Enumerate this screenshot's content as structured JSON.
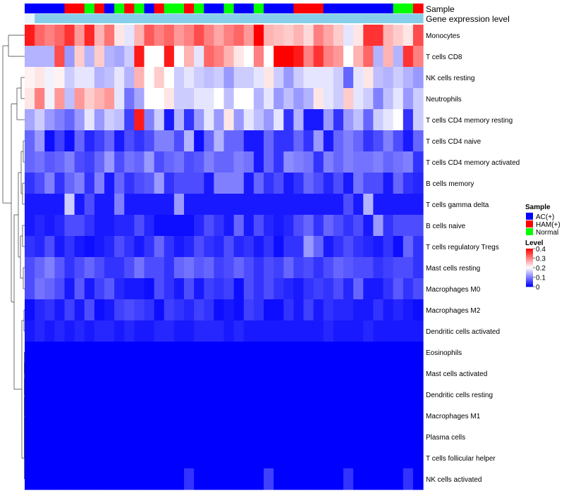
{
  "chart_data": {
    "type": "heatmap",
    "title": "",
    "color_scale": {
      "title": "Level",
      "min": 0,
      "max": 0.4,
      "ticks": [
        0.4,
        0.3,
        0.2,
        0.1,
        0
      ],
      "tick_labels": [
        "0.4",
        "0.3",
        "0.2",
        "0.1",
        "0"
      ],
      "low_color": "#0000ff",
      "mid_color": "#ffffff",
      "high_color": "#ff0000",
      "mid_value": 0.2
    },
    "annotation_tracks": [
      {
        "label": "Sample"
      },
      {
        "label": "Gene expression level",
        "color": "#87ceeb",
        "first_color": "#e8f6fb"
      }
    ],
    "sample_legend": {
      "title": "Sample",
      "items": [
        {
          "label": "AC(+)",
          "color": "#0000ff"
        },
        {
          "label": "HAM(+)",
          "color": "#ff0000"
        },
        {
          "label": "Normal",
          "color": "#00ff00"
        }
      ]
    },
    "sample_groups": [
      "AC(+)",
      "AC(+)",
      "AC(+)",
      "AC(+)",
      "HAM(+)",
      "HAM(+)",
      "Normal",
      "HAM(+)",
      "AC(+)",
      "Normal",
      "HAM(+)",
      "Normal",
      "AC(+)",
      "HAM(+)",
      "Normal",
      "Normal",
      "HAM(+)",
      "Normal",
      "AC(+)",
      "AC(+)",
      "Normal",
      "AC(+)",
      "AC(+)",
      "Normal",
      "AC(+)",
      "AC(+)",
      "AC(+)",
      "HAM(+)",
      "HAM(+)",
      "HAM(+)",
      "AC(+)",
      "AC(+)",
      "AC(+)",
      "AC(+)",
      "AC(+)",
      "AC(+)",
      "AC(+)",
      "Normal",
      "Normal",
      "HAM(+)"
    ],
    "rows": [
      {
        "label": "Monocytes",
        "values": [
          0.38,
          0.32,
          0.3,
          0.32,
          0.36,
          0.28,
          0.37,
          0.26,
          0.31,
          0.22,
          0.18,
          0.26,
          0.33,
          0.3,
          0.32,
          0.28,
          0.3,
          0.34,
          0.3,
          0.27,
          0.3,
          0.32,
          0.28,
          0.4,
          0.26,
          0.25,
          0.24,
          0.26,
          0.23,
          0.3,
          0.27,
          0.24,
          0.18,
          0.22,
          0.36,
          0.36,
          0.26,
          0.24,
          0.22,
          0.34
        ]
      },
      {
        "label": "T cells CD8",
        "values": [
          0.14,
          0.14,
          0.14,
          0.34,
          0.12,
          0.24,
          0.14,
          0.24,
          0.14,
          0.13,
          0.16,
          0.38,
          0.2,
          0.2,
          0.38,
          0.2,
          0.26,
          0.18,
          0.32,
          0.3,
          0.26,
          0.22,
          0.2,
          0.3,
          0.2,
          0.4,
          0.4,
          0.38,
          0.3,
          0.36,
          0.3,
          0.28,
          0.2,
          0.26,
          0.32,
          0.14,
          0.26,
          0.14,
          0.36,
          0.3
        ]
      },
      {
        "label": "NK cells resting",
        "values": [
          0.21,
          0.22,
          0.19,
          0.21,
          0.16,
          0.18,
          0.18,
          0.14,
          0.15,
          0.18,
          0.14,
          0.26,
          0.2,
          0.24,
          0.2,
          0.16,
          0.18,
          0.16,
          0.15,
          0.16,
          0.12,
          0.16,
          0.16,
          0.18,
          0.22,
          0.16,
          0.12,
          0.16,
          0.18,
          0.18,
          0.18,
          0.16,
          0.08,
          0.18,
          0.22,
          0.15,
          0.14,
          0.16,
          0.14,
          0.12
        ]
      },
      {
        "label": "Neutrophils",
        "values": [
          0.22,
          0.3,
          0.19,
          0.28,
          0.15,
          0.28,
          0.24,
          0.26,
          0.28,
          0.18,
          0.09,
          0.13,
          0.2,
          0.2,
          0.22,
          0.16,
          0.16,
          0.18,
          0.18,
          0.2,
          0.15,
          0.2,
          0.2,
          0.14,
          0.18,
          0.12,
          0.15,
          0.12,
          0.14,
          0.22,
          0.18,
          0.16,
          0.24,
          0.18,
          0.16,
          0.1,
          0.15,
          0.18,
          0.12,
          0.16
        ]
      },
      {
        "label": "T cells CD4 memory resting",
        "values": [
          0.13,
          0.16,
          0.12,
          0.1,
          0.08,
          0.12,
          0.18,
          0.12,
          0.16,
          0.15,
          0.05,
          0.38,
          0.1,
          0.16,
          0.02,
          0.14,
          0.04,
          0.12,
          0.18,
          0.12,
          0.22,
          0.12,
          0.18,
          0.15,
          0.12,
          0.18,
          0.04,
          0.14,
          0.02,
          0.02,
          0.12,
          0.04,
          0.12,
          0.15,
          0.08,
          0.16,
          0.18,
          0.2,
          0.04,
          0.16
        ]
      },
      {
        "label": "T cells CD4 naive",
        "values": [
          0.08,
          0.12,
          0.01,
          0.05,
          0.01,
          0.08,
          0.03,
          0.05,
          0.08,
          0.02,
          0.06,
          0.04,
          0.06,
          0.1,
          0.1,
          0.06,
          0.14,
          0.01,
          0.08,
          0.14,
          0.08,
          0.08,
          0.02,
          0.02,
          0.08,
          0.04,
          0.04,
          0.08,
          0.04,
          0.12,
          0.02,
          0.08,
          0.1,
          0.08,
          0.04,
          0.06,
          0.1,
          0.06,
          0.02,
          0.08
        ]
      },
      {
        "label": "T cells CD4 memory activated",
        "values": [
          0.08,
          0.09,
          0.07,
          0.08,
          0.1,
          0.06,
          0.05,
          0.08,
          0.12,
          0.06,
          0.09,
          0.08,
          0.12,
          0.06,
          0.08,
          0.09,
          0.06,
          0.07,
          0.1,
          0.08,
          0.08,
          0.1,
          0.09,
          0.02,
          0.08,
          0.04,
          0.11,
          0.1,
          0.09,
          0.04,
          0.1,
          0.08,
          0.1,
          0.09,
          0.09,
          0.1,
          0.08,
          0.09,
          0.1,
          0.04
        ]
      },
      {
        "label": "B cells memory",
        "values": [
          0.04,
          0.06,
          0.1,
          0.04,
          0.08,
          0.1,
          0.04,
          0.1,
          0.02,
          0.08,
          0.04,
          0.06,
          0.07,
          0.12,
          0.04,
          0.06,
          0.06,
          0.06,
          0.02,
          0.1,
          0.1,
          0.1,
          0.02,
          0.08,
          0.04,
          0.06,
          0.02,
          0.04,
          0.08,
          0.06,
          0.03,
          0.06,
          0.02,
          0.09,
          0.06,
          0.06,
          0.02,
          0.08,
          0.04,
          0.03
        ]
      },
      {
        "label": "T cells gamma delta",
        "values": [
          0.02,
          0.02,
          0.02,
          0.02,
          0.16,
          0.02,
          0.06,
          0.02,
          0.02,
          0.1,
          0.02,
          0.02,
          0.02,
          0.02,
          0.02,
          0.12,
          0.02,
          0.02,
          0.02,
          0.02,
          0.02,
          0.02,
          0.02,
          0.02,
          0.02,
          0.02,
          0.02,
          0.02,
          0.02,
          0.02,
          0.02,
          0.02,
          0.06,
          0.02,
          0.14,
          0.02,
          0.02,
          0.02,
          0.02,
          0.02
        ]
      },
      {
        "label": "B cells naive",
        "values": [
          0.02,
          0.03,
          0.02,
          0.03,
          0.06,
          0.06,
          0.04,
          0.02,
          0.02,
          0.03,
          0.03,
          0.06,
          0.03,
          0.01,
          0.01,
          0.01,
          0.01,
          0.03,
          0.06,
          0.04,
          0.02,
          0.08,
          0.02,
          0.06,
          0.03,
          0.02,
          0.03,
          0.06,
          0.08,
          0.04,
          0.08,
          0.06,
          0.04,
          0.06,
          0.02,
          0.12,
          0.04,
          0.06,
          0.06,
          0.06
        ]
      },
      {
        "label": "T cells regulatory  Tregs",
        "values": [
          0.04,
          0.03,
          0.06,
          0.02,
          0.04,
          0.02,
          0.01,
          0.02,
          0.03,
          0.06,
          0.04,
          0.02,
          0.04,
          0.08,
          0.04,
          0.02,
          0.03,
          0.06,
          0.04,
          0.03,
          0.06,
          0.03,
          0.04,
          0.02,
          0.04,
          0.01,
          0.04,
          0.04,
          0.12,
          0.08,
          0.02,
          0.04,
          0.06,
          0.04,
          0.03,
          0.02,
          0.04,
          0.01,
          0.08,
          0.04
        ]
      },
      {
        "label": "Mast cells resting",
        "values": [
          0.06,
          0.08,
          0.1,
          0.07,
          0.04,
          0.06,
          0.08,
          0.06,
          0.04,
          0.04,
          0.06,
          0.09,
          0.06,
          0.06,
          0.04,
          0.08,
          0.09,
          0.07,
          0.08,
          0.05,
          0.06,
          0.08,
          0.06,
          0.04,
          0.06,
          0.05,
          0.08,
          0.05,
          0.06,
          0.04,
          0.06,
          0.08,
          0.07,
          0.06,
          0.06,
          0.04,
          0.05,
          0.06,
          0.06,
          0.04
        ]
      },
      {
        "label": "Macrophages M0",
        "values": [
          0.06,
          0.09,
          0.08,
          0.06,
          0.02,
          0.07,
          0.02,
          0.05,
          0.07,
          0.03,
          0.02,
          0.02,
          0.01,
          0.06,
          0.04,
          0.02,
          0.06,
          0.02,
          0.05,
          0.04,
          0.05,
          0.01,
          0.06,
          0.04,
          0.06,
          0.04,
          0.03,
          0.02,
          0.04,
          0.05,
          0.04,
          0.06,
          0.03,
          0.08,
          0.02,
          0.02,
          0.04,
          0.07,
          0.04,
          0.06
        ]
      },
      {
        "label": "Macrophages M2",
        "values": [
          0.01,
          0.03,
          0.04,
          0.02,
          0.05,
          0.02,
          0.06,
          0.01,
          0.02,
          0.05,
          0.06,
          0.05,
          0.04,
          0.01,
          0.05,
          0.04,
          0.03,
          0.05,
          0.04,
          0.01,
          0.02,
          0.01,
          0.05,
          0.04,
          0.01,
          0.01,
          0.04,
          0.02,
          0.05,
          0.02,
          0.04,
          0.03,
          0.03,
          0.02,
          0.02,
          0.04,
          0.02,
          0.03,
          0.02,
          0.01
        ]
      },
      {
        "label": "Dendritic cells activated",
        "values": [
          0.02,
          0.03,
          0.02,
          0.03,
          0.02,
          0.03,
          0.02,
          0.03,
          0.03,
          0.02,
          0.03,
          0.02,
          0.02,
          0.03,
          0.03,
          0.02,
          0.02,
          0.03,
          0.03,
          0.03,
          0.02,
          0.03,
          0.02,
          0.02,
          0.02,
          0.02,
          0.02,
          0.02,
          0.02,
          0.02,
          0.03,
          0.02,
          0.02,
          0.02,
          0.03,
          0.02,
          0.02,
          0.02,
          0.02,
          0.02
        ]
      },
      {
        "label": "Eosinophils",
        "values": [
          0.0,
          0.0,
          0.0,
          0.0,
          0.0,
          0.0,
          0.0,
          0.0,
          0.0,
          0.0,
          0.0,
          0.0,
          0.0,
          0.0,
          0.0,
          0.0,
          0.0,
          0.0,
          0.0,
          0.0,
          0.0,
          0.0,
          0.0,
          0.0,
          0.0,
          0.0,
          0.0,
          0.0,
          0.0,
          0.0,
          0.0,
          0.0,
          0.0,
          0.0,
          0.0,
          0.0,
          0.0,
          0.0,
          0.0,
          0.0
        ]
      },
      {
        "label": "Mast cells activated",
        "values": [
          0.0,
          0.0,
          0.0,
          0.0,
          0.0,
          0.0,
          0.0,
          0.0,
          0.0,
          0.0,
          0.0,
          0.0,
          0.0,
          0.0,
          0.0,
          0.0,
          0.0,
          0.0,
          0.0,
          0.0,
          0.0,
          0.0,
          0.0,
          0.0,
          0.0,
          0.0,
          0.0,
          0.0,
          0.0,
          0.0,
          0.0,
          0.0,
          0.0,
          0.0,
          0.0,
          0.0,
          0.0,
          0.0,
          0.0,
          0.0
        ]
      },
      {
        "label": "Dendritic cells resting",
        "values": [
          0.0,
          0.0,
          0.0,
          0.0,
          0.0,
          0.0,
          0.0,
          0.0,
          0.0,
          0.0,
          0.0,
          0.0,
          0.0,
          0.0,
          0.0,
          0.0,
          0.0,
          0.0,
          0.0,
          0.0,
          0.0,
          0.0,
          0.0,
          0.0,
          0.0,
          0.0,
          0.0,
          0.0,
          0.0,
          0.0,
          0.0,
          0.0,
          0.0,
          0.0,
          0.0,
          0.0,
          0.0,
          0.0,
          0.0,
          0.0
        ]
      },
      {
        "label": "Macrophages M1",
        "values": [
          0.0,
          0.0,
          0.0,
          0.0,
          0.0,
          0.0,
          0.0,
          0.0,
          0.0,
          0.0,
          0.0,
          0.0,
          0.0,
          0.0,
          0.0,
          0.0,
          0.0,
          0.0,
          0.0,
          0.0,
          0.0,
          0.0,
          0.0,
          0.0,
          0.0,
          0.0,
          0.0,
          0.0,
          0.0,
          0.0,
          0.0,
          0.0,
          0.0,
          0.0,
          0.0,
          0.0,
          0.0,
          0.0,
          0.0,
          0.0
        ]
      },
      {
        "label": "Plasma cells",
        "values": [
          0.0,
          0.0,
          0.0,
          0.0,
          0.0,
          0.0,
          0.0,
          0.0,
          0.0,
          0.0,
          0.0,
          0.0,
          0.0,
          0.0,
          0.0,
          0.0,
          0.0,
          0.0,
          0.0,
          0.0,
          0.0,
          0.0,
          0.0,
          0.0,
          0.0,
          0.0,
          0.0,
          0.0,
          0.0,
          0.0,
          0.0,
          0.0,
          0.0,
          0.0,
          0.0,
          0.0,
          0.0,
          0.0,
          0.0,
          0.0
        ]
      },
      {
        "label": "T cells follicular helper",
        "values": [
          0.0,
          0.0,
          0.0,
          0.0,
          0.0,
          0.0,
          0.0,
          0.0,
          0.0,
          0.0,
          0.0,
          0.0,
          0.0,
          0.0,
          0.0,
          0.0,
          0.0,
          0.0,
          0.0,
          0.0,
          0.0,
          0.0,
          0.0,
          0.0,
          0.0,
          0.0,
          0.0,
          0.0,
          0.0,
          0.0,
          0.0,
          0.0,
          0.0,
          0.0,
          0.0,
          0.0,
          0.0,
          0.0,
          0.0,
          0.0
        ]
      },
      {
        "label": "NK cells activated",
        "values": [
          0.0,
          0.0,
          0.0,
          0.0,
          0.0,
          0.0,
          0.0,
          0.0,
          0.0,
          0.0,
          0.0,
          0.0,
          0.0,
          0.0,
          0.0,
          0.0,
          0.04,
          0.0,
          0.0,
          0.0,
          0.0,
          0.0,
          0.0,
          0.0,
          0.05,
          0.0,
          0.0,
          0.0,
          0.0,
          0.0,
          0.0,
          0.0,
          0.04,
          0.0,
          0.0,
          0.0,
          0.0,
          0.0,
          0.04,
          0.0
        ]
      }
    ]
  }
}
